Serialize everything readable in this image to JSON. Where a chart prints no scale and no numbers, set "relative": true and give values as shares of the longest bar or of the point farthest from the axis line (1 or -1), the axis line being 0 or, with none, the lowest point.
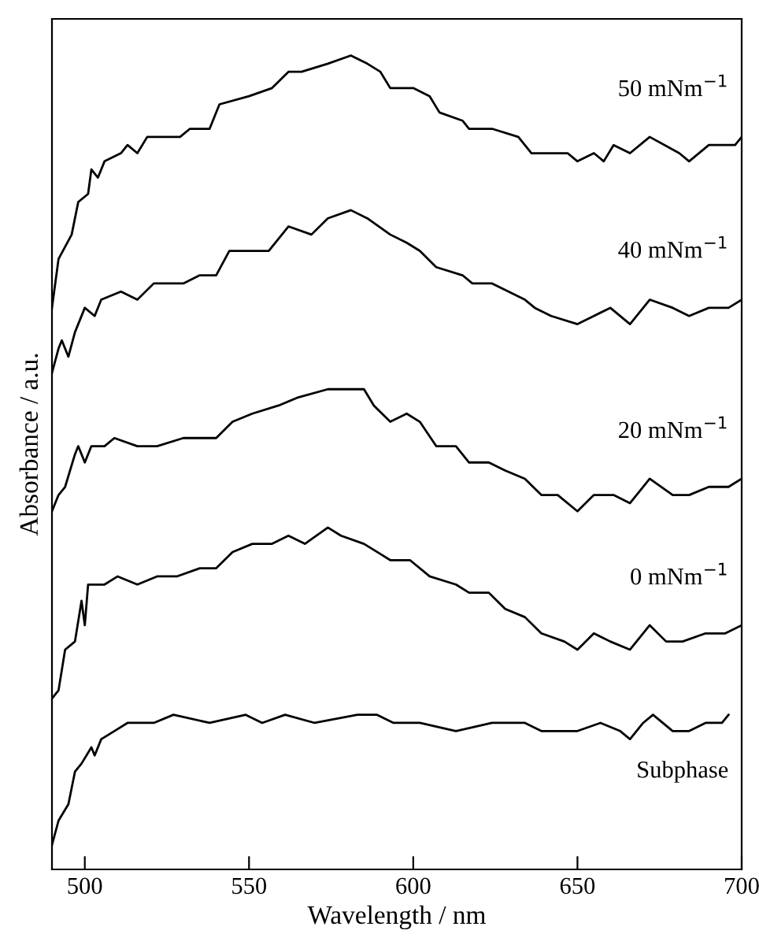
{
  "chart_data": {
    "type": "line",
    "relative": true,
    "xlabel": "Wavelength / nm",
    "ylabel": "Absorbance / a.u.",
    "xlim": [
      490,
      700
    ],
    "xticks": [
      500,
      550,
      600,
      650,
      700
    ],
    "tick_labels": "x",
    "legend": false,
    "grid": false,
    "marker": "none",
    "line_style": "solid",
    "series": [
      {
        "name": "50 mNm$^{−1}$",
        "color": "#000000",
        "x": [
          490,
          492,
          496,
          498,
          501,
          502,
          504,
          506,
          511,
          513,
          516,
          519,
          529,
          532,
          538,
          541,
          550,
          557,
          562,
          566,
          574,
          581,
          586,
          590,
          593,
          600,
          605,
          608,
          615,
          617,
          624,
          632,
          636,
          641,
          647,
          650,
          655,
          658,
          661,
          666,
          672,
          681,
          684,
          690,
          698,
          700
        ],
        "values": [
          0.69,
          0.75,
          0.78,
          0.82,
          0.83,
          0.86,
          0.85,
          0.87,
          0.88,
          0.89,
          0.88,
          0.9,
          0.9,
          0.91,
          0.91,
          0.94,
          0.95,
          0.96,
          0.98,
          0.98,
          0.99,
          1.0,
          0.99,
          0.98,
          0.96,
          0.96,
          0.95,
          0.93,
          0.92,
          0.91,
          0.91,
          0.9,
          0.88,
          0.88,
          0.88,
          0.87,
          0.88,
          0.87,
          0.89,
          0.88,
          0.9,
          0.88,
          0.87,
          0.89,
          0.89,
          0.9
        ]
      },
      {
        "name": "40 mNm$^{−1}$",
        "color": "#000000",
        "x": [
          490,
          492,
          493,
          495,
          497,
          500,
          503,
          505,
          511,
          516,
          521,
          526,
          530,
          535,
          540,
          544,
          550,
          556,
          562,
          569,
          574,
          581,
          586,
          593,
          598,
          602,
          607,
          615,
          618,
          624,
          629,
          634,
          637,
          642,
          650,
          655,
          660,
          666,
          672,
          679,
          684,
          690,
          696,
          700
        ],
        "values": [
          0.61,
          0.64,
          0.65,
          0.63,
          0.66,
          0.69,
          0.68,
          0.7,
          0.71,
          0.7,
          0.72,
          0.72,
          0.72,
          0.73,
          0.73,
          0.76,
          0.76,
          0.76,
          0.79,
          0.78,
          0.8,
          0.81,
          0.8,
          0.78,
          0.77,
          0.76,
          0.74,
          0.73,
          0.72,
          0.72,
          0.71,
          0.7,
          0.69,
          0.68,
          0.67,
          0.68,
          0.69,
          0.67,
          0.7,
          0.69,
          0.68,
          0.69,
          0.69,
          0.7
        ]
      },
      {
        "name": "20 mNm$^{−1}$",
        "color": "#000000",
        "x": [
          490,
          492,
          494,
          497,
          498,
          500,
          502,
          506,
          509,
          516,
          522,
          530,
          535,
          540,
          545,
          551,
          559,
          565,
          574,
          580,
          585,
          588,
          593,
          598,
          602,
          607,
          613,
          617,
          623,
          628,
          634,
          639,
          644,
          650,
          655,
          661,
          666,
          672,
          679,
          684,
          690,
          696,
          700
        ],
        "values": [
          0.44,
          0.46,
          0.47,
          0.51,
          0.52,
          0.5,
          0.52,
          0.52,
          0.53,
          0.52,
          0.52,
          0.53,
          0.53,
          0.53,
          0.55,
          0.56,
          0.57,
          0.58,
          0.59,
          0.59,
          0.59,
          0.57,
          0.55,
          0.56,
          0.55,
          0.52,
          0.52,
          0.5,
          0.5,
          0.49,
          0.48,
          0.46,
          0.46,
          0.44,
          0.46,
          0.46,
          0.45,
          0.48,
          0.46,
          0.46,
          0.47,
          0.47,
          0.48
        ]
      },
      {
        "name": "0 mNm$^{−1}$",
        "color": "#000000",
        "x": [
          490,
          492,
          494,
          497,
          499,
          500,
          501,
          506,
          510,
          516,
          522,
          528,
          535,
          540,
          545,
          551,
          557,
          562,
          567,
          574,
          578,
          585,
          589,
          593,
          599,
          605,
          613,
          617,
          623,
          628,
          634,
          639,
          646,
          650,
          655,
          660,
          666,
          672,
          677,
          682,
          689,
          695,
          700
        ],
        "values": [
          0.21,
          0.22,
          0.27,
          0.28,
          0.33,
          0.3,
          0.35,
          0.35,
          0.36,
          0.35,
          0.36,
          0.36,
          0.37,
          0.37,
          0.39,
          0.4,
          0.4,
          0.41,
          0.4,
          0.42,
          0.41,
          0.4,
          0.39,
          0.38,
          0.38,
          0.36,
          0.35,
          0.34,
          0.34,
          0.32,
          0.31,
          0.29,
          0.28,
          0.27,
          0.29,
          0.28,
          0.27,
          0.3,
          0.28,
          0.28,
          0.29,
          0.29,
          0.3
        ]
      },
      {
        "name": "Subphase",
        "color": "#000000",
        "x": [
          490,
          492,
          495,
          497,
          499,
          502,
          503,
          505,
          509,
          513,
          516,
          521,
          527,
          538,
          549,
          554,
          561,
          570,
          583,
          589,
          594,
          602,
          613,
          624,
          634,
          639,
          646,
          650,
          657,
          663,
          666,
          670,
          673,
          679,
          684,
          689,
          694,
          696
        ],
        "values": [
          0.03,
          0.06,
          0.08,
          0.12,
          0.13,
          0.15,
          0.14,
          0.16,
          0.17,
          0.18,
          0.18,
          0.18,
          0.19,
          0.18,
          0.19,
          0.18,
          0.19,
          0.18,
          0.19,
          0.19,
          0.18,
          0.18,
          0.17,
          0.18,
          0.18,
          0.17,
          0.17,
          0.17,
          0.18,
          0.17,
          0.16,
          0.18,
          0.19,
          0.17,
          0.17,
          0.18,
          0.18,
          0.19
        ]
      }
    ]
  }
}
